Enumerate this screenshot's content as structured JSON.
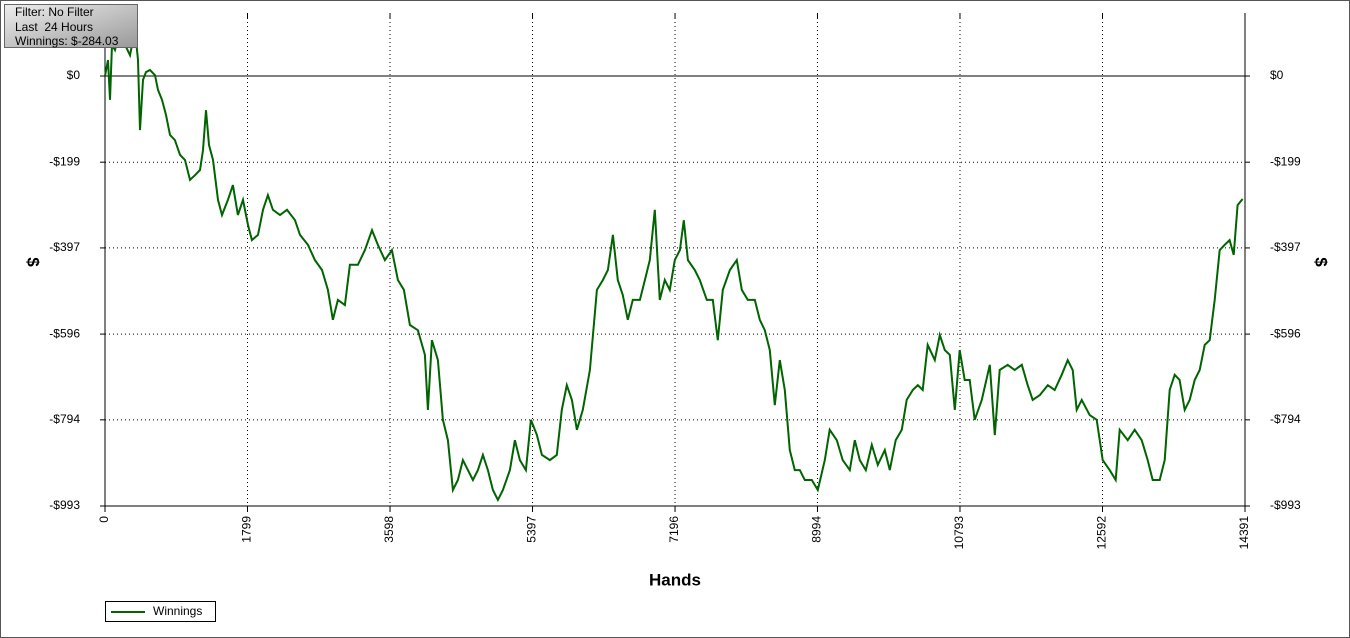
{
  "chart_data": {
    "type": "line",
    "annotation": [
      "Filter: No Filter",
      "Last  24 Hours",
      "Winnings: $-284.03"
    ],
    "xlabel": "Hands",
    "ylabel": "$",
    "xlim": [
      0,
      14391
    ],
    "xticks": [
      0,
      1799,
      3598,
      5397,
      7196,
      8994,
      10793,
      12592,
      14391
    ],
    "ylim": [
      -993,
      134
    ],
    "yticks": [
      {
        "value": 0,
        "label": "$0"
      },
      {
        "value": -199,
        "label": "-$199"
      },
      {
        "value": -397,
        "label": "-$397"
      },
      {
        "value": -596,
        "label": "-$596"
      },
      {
        "value": -794,
        "label": "-$794"
      },
      {
        "value": -993,
        "label": "-$993"
      }
    ],
    "grid": true,
    "x": [
      0,
      38,
      63,
      88,
      126,
      189,
      252,
      316,
      379,
      417,
      442,
      480,
      517,
      568,
      631,
      669,
      719,
      770,
      820,
      883,
      947,
      1010,
      1073,
      1136,
      1199,
      1237,
      1275,
      1313,
      1363,
      1426,
      1477,
      1552,
      1615,
      1678,
      1742,
      1805,
      1855,
      1931,
      1994,
      2057,
      2120,
      2209,
      2297,
      2398,
      2461,
      2562,
      2650,
      2739,
      2814,
      2877,
      2940,
      3029,
      3092,
      3193,
      3281,
      3370,
      3445,
      3534,
      3622,
      3698,
      3773,
      3849,
      3950,
      4038,
      4076,
      4127,
      4202,
      4266,
      4329,
      4392,
      4455,
      4518,
      4581,
      4644,
      4707,
      4770,
      4833,
      4897,
      4960,
      5023,
      5111,
      5174,
      5237,
      5313,
      5376,
      5452,
      5515,
      5616,
      5704,
      5767,
      5830,
      5894,
      5957,
      6032,
      6121,
      6209,
      6285,
      6348,
      6411,
      6474,
      6537,
      6600,
      6663,
      6752,
      6815,
      6878,
      6941,
      7004,
      7067,
      7130,
      7193,
      7257,
      7307,
      7358,
      7446,
      7509,
      7597,
      7673,
      7736,
      7799,
      7888,
      7976,
      8039,
      8115,
      8203,
      8266,
      8329,
      8392,
      8455,
      8518,
      8582,
      8645,
      8708,
      8771,
      8834,
      8922,
      8998,
      9086,
      9149,
      9238,
      9313,
      9402,
      9465,
      9528,
      9604,
      9680,
      9755,
      9844,
      9907,
      9982,
      10058,
      10121,
      10197,
      10260,
      10323,
      10386,
      10475,
      10538,
      10601,
      10664,
      10727,
      10790,
      10853,
      10916,
      10979,
      11068,
      11169,
      11232,
      11295,
      11396,
      11484,
      11573,
      11648,
      11711,
      11800,
      11901,
      11989,
      12077,
      12153,
      12216,
      12267,
      12330,
      12431,
      12519,
      12595,
      12683,
      12759,
      12809,
      12910,
      12999,
      13087,
      13163,
      13226,
      13314,
      13377,
      13440,
      13503,
      13566,
      13630,
      13693,
      13756,
      13819,
      13882,
      13945,
      14008,
      14071,
      14134,
      14197,
      14248,
      14298,
      14361
    ],
    "series": [
      {
        "name": "Winnings",
        "color": "#006400",
        "values": [
          0,
          37,
          -55,
          72,
          60,
          106,
          72,
          48,
          106,
          37,
          -125,
          -9,
          9,
          14,
          2,
          -32,
          -55,
          -90,
          -136,
          -148,
          -182,
          -194,
          -240,
          -229,
          -217,
          -171,
          -79,
          -159,
          -194,
          -286,
          -321,
          -286,
          -252,
          -321,
          -286,
          -344,
          -379,
          -367,
          -309,
          -275,
          -309,
          -321,
          -309,
          -333,
          -367,
          -390,
          -425,
          -448,
          -494,
          -563,
          -517,
          -529,
          -436,
          -436,
          -402,
          -356,
          -390,
          -425,
          -402,
          -471,
          -494,
          -575,
          -587,
          -644,
          -771,
          -610,
          -656,
          -794,
          -841,
          -956,
          -933,
          -887,
          -910,
          -933,
          -910,
          -875,
          -910,
          -956,
          -979,
          -956,
          -910,
          -841,
          -887,
          -910,
          -794,
          -829,
          -875,
          -887,
          -875,
          -771,
          -714,
          -748,
          -817,
          -771,
          -679,
          -494,
          -471,
          -448,
          -367,
          -471,
          -506,
          -563,
          -517,
          -517,
          -471,
          -425,
          -309,
          -517,
          -471,
          -494,
          -425,
          -402,
          -333,
          -425,
          -448,
          -471,
          -517,
          -517,
          -610,
          -494,
          -448,
          -425,
          -494,
          -517,
          -517,
          -563,
          -587,
          -633,
          -760,
          -656,
          -725,
          -864,
          -910,
          -910,
          -933,
          -933,
          -956,
          -887,
          -817,
          -841,
          -887,
          -910,
          -841,
          -887,
          -910,
          -852,
          -898,
          -864,
          -910,
          -841,
          -817,
          -748,
          -725,
          -714,
          -725,
          -621,
          -656,
          -598,
          -633,
          -644,
          -771,
          -633,
          -702,
          -702,
          -794,
          -748,
          -667,
          -829,
          -679,
          -667,
          -679,
          -667,
          -714,
          -748,
          -737,
          -714,
          -725,
          -690,
          -656,
          -679,
          -771,
          -748,
          -783,
          -794,
          -887,
          -910,
          -933,
          -817,
          -841,
          -817,
          -841,
          -887,
          -933,
          -933,
          -887,
          -725,
          -690,
          -702,
          -771,
          -748,
          -702,
          -679,
          -621,
          -610,
          -517,
          -402,
          -390,
          -379,
          -413,
          -298,
          -284.03
        ]
      }
    ]
  }
}
